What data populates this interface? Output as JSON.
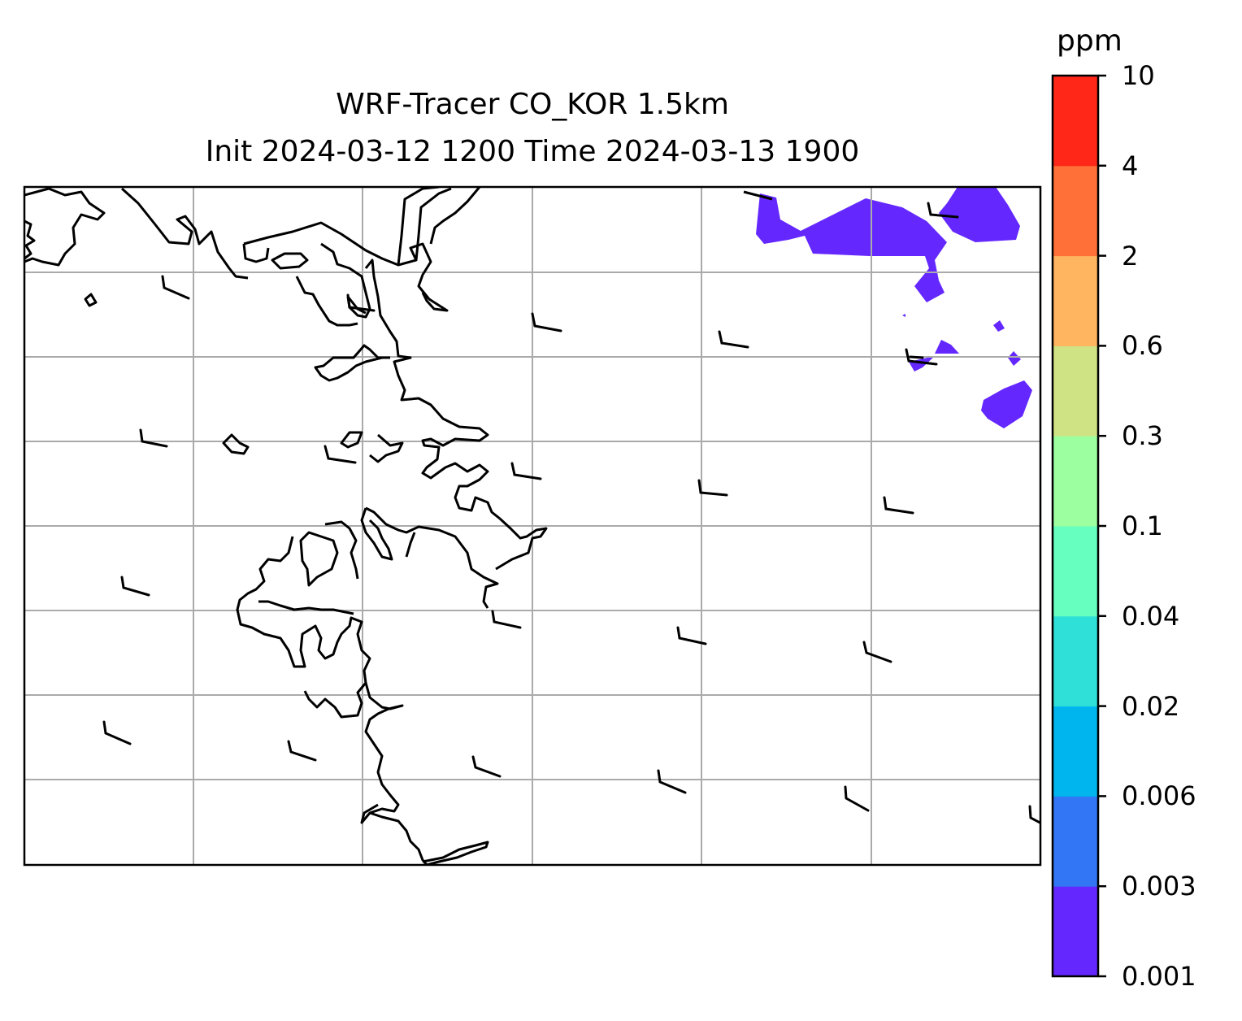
{
  "title": {
    "line1": "WRF-Tracer CO_KOR 1.5km",
    "line2": "Init 2024-03-12 1200 Time 2024-03-13 1900"
  },
  "colorbar": {
    "unit": "ppm",
    "levels": [
      "0.001",
      "0.003",
      "0.006",
      "0.02",
      "0.04",
      "0.1",
      "0.3",
      "0.6",
      "2",
      "4",
      "10"
    ],
    "colors": [
      "#6428ff",
      "#3275f5",
      "#00b5ee",
      "#2fe0d8",
      "#66ffc0",
      "#9cffa0",
      "#d0e384",
      "#ffb460",
      "#ff7038",
      "#ff2818"
    ]
  },
  "map": {
    "gridlines": true,
    "gridline_color": "#aaaaaa",
    "coastline_color": "#000000",
    "tracer_fill_color": "#6428ff",
    "wind_barbs": true
  }
}
